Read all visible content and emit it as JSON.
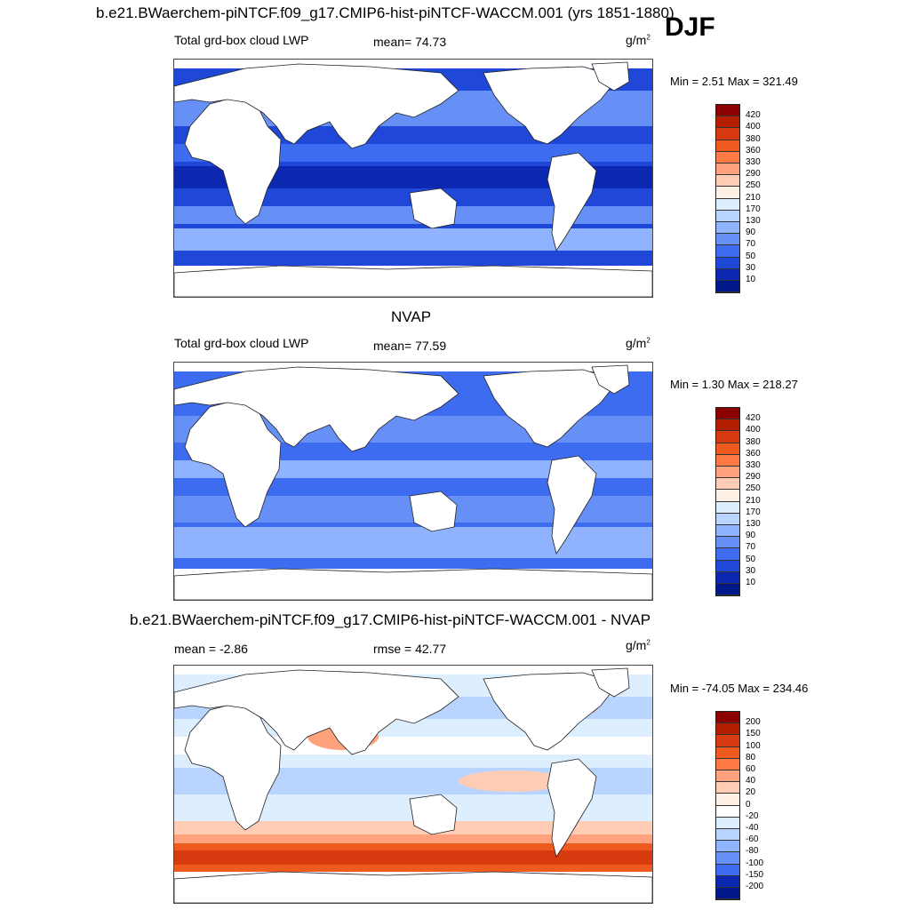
{
  "header": {
    "title": "b.e21.BWaerchem-piNTCF.f09_g17.CMIP6-hist-piNTCF-WACCM.001 (yrs 1851-1880)",
    "season": "DJF"
  },
  "panels": [
    {
      "title": "",
      "left_label": "Total grd-box cloud LWP",
      "stat_label": "mean=  74.73",
      "units": "g/m",
      "units_sup": "2",
      "min_text": "Min =   2.51",
      "max_text": "Max = 321.49",
      "colorbar": {
        "labels": [
          "420",
          "400",
          "380",
          "360",
          "330",
          "290",
          "250",
          "210",
          "170",
          "130",
          "90",
          "70",
          "50",
          "30",
          "10"
        ],
        "colors": [
          "#8b0000",
          "#b31d00",
          "#d63a0e",
          "#ef5a1f",
          "#ff7a45",
          "#ffa27d",
          "#ffcdb6",
          "#fff0e6",
          "#ddeeff",
          "#b8d4ff",
          "#8fb3ff",
          "#6690f5",
          "#3d6cf0",
          "#1f48d8",
          "#0d28b0",
          "#001888"
        ]
      }
    },
    {
      "title": "NVAP",
      "left_label": "Total grd-box cloud LWP",
      "stat_label": "mean=  77.59",
      "units": "g/m",
      "units_sup": "2",
      "min_text": "Min =   1.30",
      "max_text": "Max = 218.27",
      "colorbar": {
        "labels": [
          "420",
          "400",
          "380",
          "360",
          "330",
          "290",
          "250",
          "210",
          "170",
          "130",
          "90",
          "70",
          "50",
          "30",
          "10"
        ],
        "colors": [
          "#8b0000",
          "#b31d00",
          "#d63a0e",
          "#ef5a1f",
          "#ff7a45",
          "#ffa27d",
          "#ffcdb6",
          "#fff0e6",
          "#ddeeff",
          "#b8d4ff",
          "#8fb3ff",
          "#6690f5",
          "#3d6cf0",
          "#1f48d8",
          "#0d28b0",
          "#001888"
        ]
      }
    },
    {
      "title": "b.e21.BWaerchem-piNTCF.f09_g17.CMIP6-hist-piNTCF-WACCM.001 - NVAP",
      "left_label": "mean =  -2.86",
      "stat_label": "rmse =  42.77",
      "units": "g/m",
      "units_sup": "2",
      "min_text": "Min = -74.05",
      "max_text": "Max = 234.46",
      "colorbar": {
        "labels": [
          "200",
          "150",
          "100",
          "80",
          "60",
          "40",
          "20",
          "0",
          "-20",
          "-40",
          "-60",
          "-80",
          "-100",
          "-150",
          "-200"
        ],
        "colors": [
          "#8b0000",
          "#b31d00",
          "#d63a0e",
          "#ef5a1f",
          "#ff7a45",
          "#ffa27d",
          "#ffcdb6",
          "#fff0e6",
          "#ffffff",
          "#ddeeff",
          "#b8d4ff",
          "#8fb3ff",
          "#6690f5",
          "#3d6cf0",
          "#0d28b0",
          "#001888"
        ]
      }
    }
  ],
  "chart_data": [
    {
      "type": "heatmap",
      "title": "Total grd-box cloud LWP",
      "units": "g/m2",
      "mean": 74.73,
      "min": 2.51,
      "max": 321.49,
      "levels": [
        10,
        30,
        50,
        70,
        90,
        130,
        170,
        210,
        250,
        290,
        330,
        360,
        380,
        400,
        420
      ]
    },
    {
      "type": "heatmap",
      "title": "NVAP",
      "units": "g/m2",
      "mean": 77.59,
      "min": 1.3,
      "max": 218.27,
      "levels": [
        10,
        30,
        50,
        70,
        90,
        130,
        170,
        210,
        250,
        290,
        330,
        360,
        380,
        400,
        420
      ]
    },
    {
      "type": "heatmap",
      "title": "b.e21.BWaerchem-piNTCF.f09_g17.CMIP6-hist-piNTCF-WACCM.001 - NVAP",
      "units": "g/m2",
      "mean": -2.86,
      "rmse": 42.77,
      "min": -74.05,
      "max": 234.46,
      "levels": [
        -200,
        -150,
        -100,
        -80,
        -60,
        -40,
        -20,
        0,
        20,
        40,
        60,
        80,
        100,
        150,
        200
      ]
    }
  ]
}
